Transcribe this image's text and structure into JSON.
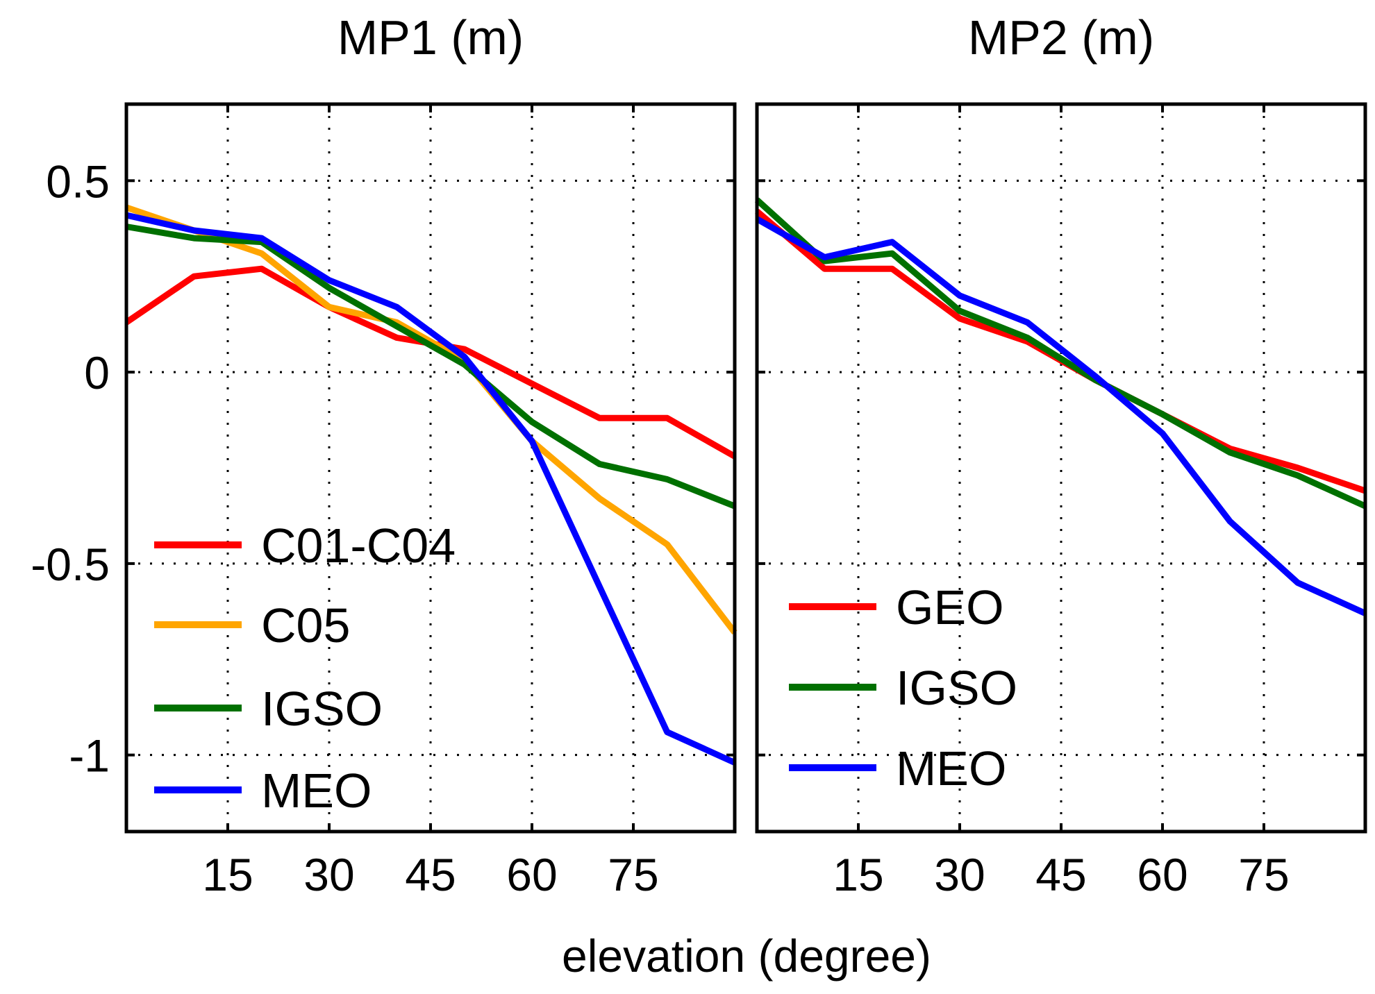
{
  "chart_data": [
    {
      "type": "line",
      "title": "MP1 (m)",
      "xlabel": "elevation (degree)",
      "ylabel": "",
      "xlim": [
        0,
        90
      ],
      "ylim": [
        -1.2,
        0.7
      ],
      "xticks": [
        15,
        30,
        45,
        60,
        75
      ],
      "xtick_labels": [
        "15",
        "30",
        "45",
        "60",
        "75"
      ],
      "yticks": [
        0.5,
        0,
        -0.5,
        -1
      ],
      "ytick_labels": [
        "0.5",
        "0",
        "-0.5",
        "-1"
      ],
      "grid": true,
      "legend_position": "bottom-left",
      "x": [
        0,
        10,
        20,
        30,
        40,
        50,
        60,
        70,
        80,
        90
      ],
      "series": [
        {
          "name": "C01-C04",
          "color": "#ff0000",
          "values": [
            0.13,
            0.25,
            0.27,
            0.17,
            0.09,
            0.06,
            -0.03,
            -0.12,
            -0.12,
            -0.22
          ]
        },
        {
          "name": "C05",
          "color": "#ffa500",
          "values": [
            0.43,
            0.37,
            0.31,
            0.17,
            0.13,
            0.03,
            -0.18,
            -0.33,
            -0.45,
            -0.68
          ]
        },
        {
          "name": "IGSO",
          "color": "#007000",
          "values": [
            0.38,
            0.35,
            0.34,
            0.22,
            0.12,
            0.02,
            -0.13,
            -0.24,
            -0.28,
            -0.35
          ]
        },
        {
          "name": "MEO",
          "color": "#0000ff",
          "values": [
            0.41,
            0.37,
            0.35,
            0.24,
            0.17,
            0.04,
            -0.18,
            -0.56,
            -0.94,
            -1.02
          ]
        }
      ]
    },
    {
      "type": "line",
      "title": "MP2 (m)",
      "xlabel": "elevation (degree)",
      "ylabel": "",
      "xlim": [
        0,
        90
      ],
      "ylim": [
        -1.2,
        0.7
      ],
      "xticks": [
        15,
        30,
        45,
        60,
        75
      ],
      "xtick_labels": [
        "15",
        "30",
        "45",
        "60",
        "75"
      ],
      "yticks": [
        0.5,
        0,
        -0.5,
        -1
      ],
      "ytick_labels": [
        "",
        "",
        "",
        ""
      ],
      "grid": true,
      "legend_position": "bottom-left",
      "x": [
        0,
        10,
        20,
        30,
        40,
        50,
        60,
        70,
        80,
        90
      ],
      "series": [
        {
          "name": "GEO",
          "color": "#ff0000",
          "values": [
            0.42,
            0.27,
            0.27,
            0.14,
            0.08,
            -0.02,
            -0.11,
            -0.2,
            -0.25,
            -0.31
          ]
        },
        {
          "name": "IGSO",
          "color": "#007000",
          "values": [
            0.45,
            0.29,
            0.31,
            0.16,
            0.09,
            -0.02,
            -0.11,
            -0.21,
            -0.27,
            -0.35
          ]
        },
        {
          "name": "MEO",
          "color": "#0000ff",
          "values": [
            0.4,
            0.3,
            0.34,
            0.2,
            0.13,
            -0.01,
            -0.16,
            -0.39,
            -0.55,
            -0.63
          ]
        }
      ]
    }
  ]
}
